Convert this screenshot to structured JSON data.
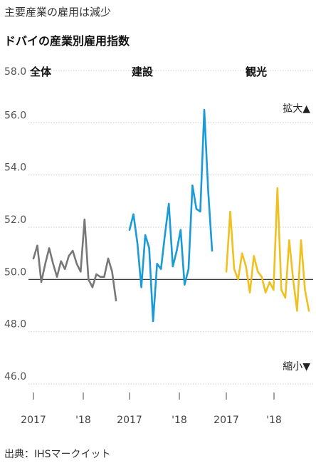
{
  "header": {
    "kicker": "主要産業の雇用は減少",
    "title": "ドバイの産業別雇用指数"
  },
  "source": "出典：IHSマークイット",
  "annotations": {
    "expand": "拡大▲",
    "shrink": "縮小▼"
  },
  "chart_data": {
    "type": "line",
    "ylim": [
      46,
      58
    ],
    "yticks": [
      "58.0",
      "56.0",
      "54.0",
      "52.0",
      "50.0",
      "48.0",
      "46.0"
    ],
    "reference_line": 50,
    "panels": [
      {
        "name": "全体",
        "color": "#777777",
        "xticks": [
          "2017",
          "'18"
        ],
        "values": [
          50.8,
          51.3,
          49.9,
          50.6,
          51.2,
          50.6,
          50.1,
          50.7,
          50.4,
          50.9,
          51.1,
          50.6,
          50.3,
          52.3,
          50.0,
          49.7,
          50.2,
          50.1,
          50.1,
          50.8,
          50.3,
          49.2
        ]
      },
      {
        "name": "建設",
        "color": "#1a9ad6",
        "xticks": [
          "2017",
          "'18"
        ],
        "values": [
          51.9,
          52.5,
          51.4,
          49.7,
          51.7,
          51.2,
          48.4,
          50.6,
          50.4,
          51.7,
          52.9,
          50.5,
          51.1,
          51.9,
          49.8,
          50.4,
          53.6,
          52.7,
          52.6,
          56.5,
          53.4,
          51.1
        ]
      },
      {
        "name": "観光",
        "color": "#f0c020",
        "xticks": [
          "2017",
          "'18"
        ],
        "values": [
          50.3,
          52.6,
          50.4,
          50.0,
          51.0,
          50.5,
          49.5,
          50.9,
          50.3,
          50.1,
          49.5,
          49.9,
          49.6,
          53.5,
          49.6,
          49.3,
          51.5,
          50.0,
          48.8,
          51.5,
          49.6,
          48.8
        ]
      }
    ]
  }
}
